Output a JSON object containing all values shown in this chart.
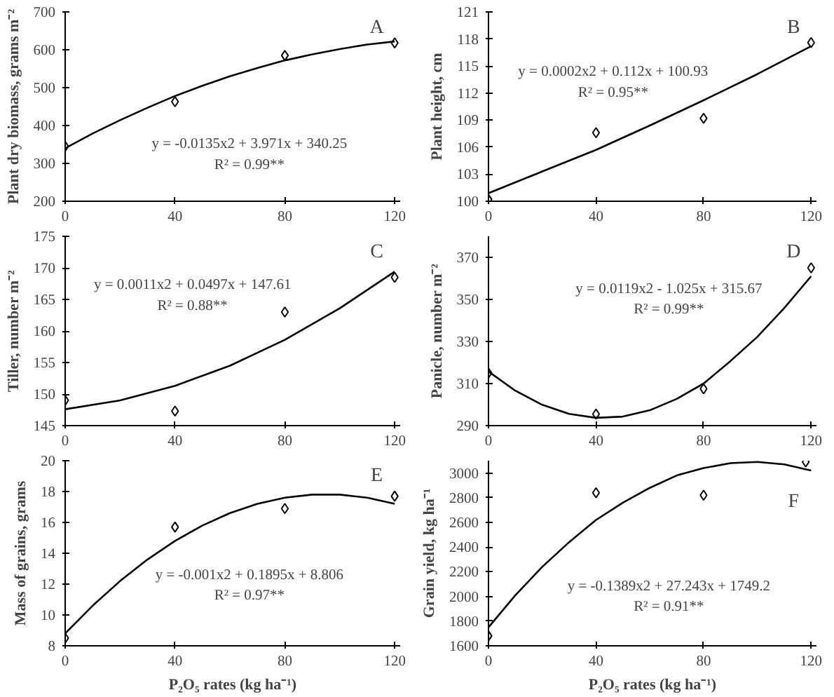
{
  "chart_data": [
    {
      "type": "scatter",
      "ylabel": "Plant dry biomass, grams m⁻²",
      "xlim": [
        0,
        122
      ],
      "xticks": [
        0,
        40,
        80,
        120
      ],
      "ylim": [
        200,
        700
      ],
      "yticks": [
        200,
        300,
        400,
        500,
        600,
        700
      ],
      "grid": false,
      "annotations": [
        "A",
        "y = -0.0135x2 + 3.971x + 340.25",
        "R² = 0.99**"
      ],
      "series": [
        {
          "marker": "diamond",
          "color": "#000000",
          "x": [
            0,
            40,
            80,
            120
          ],
          "values": [
            345,
            463,
            585,
            618
          ]
        },
        {
          "type": "line",
          "marker": "none",
          "line_style": "solid",
          "color": "#000000",
          "x": [
            0,
            10,
            20,
            30,
            40,
            50,
            60,
            70,
            80,
            90,
            100,
            110,
            120
          ],
          "values": [
            340,
            379,
            414,
            447,
            478,
            505,
            530,
            552,
            572,
            588,
            602,
            614,
            622
          ]
        }
      ]
    },
    {
      "type": "scatter",
      "ylabel": "Plant height, cm",
      "xlim": [
        0,
        122
      ],
      "xticks": [
        0,
        40,
        80,
        120
      ],
      "ylim": [
        100,
        121
      ],
      "yticks": [
        100,
        103,
        106,
        109,
        112,
        115,
        118,
        121
      ],
      "grid": false,
      "annotations": [
        "B",
        "y = 0.0002x2 + 0.112x + 100.93",
        "R² = 0.95**"
      ],
      "series": [
        {
          "marker": "diamond",
          "color": "#000000",
          "x": [
            0,
            40,
            80,
            120
          ],
          "values": [
            100.2,
            107.6,
            109.2,
            117.6
          ]
        },
        {
          "type": "line",
          "marker": "none",
          "line_style": "solid",
          "color": "#000000",
          "x": [
            0,
            20,
            40,
            60,
            80,
            100,
            120
          ],
          "values": [
            100.9,
            103.3,
            105.7,
            108.4,
            111.2,
            114.1,
            117.2
          ]
        }
      ]
    },
    {
      "type": "scatter",
      "ylabel": "Tiller, number m⁻²",
      "xlim": [
        0,
        122
      ],
      "xticks": [
        0,
        40,
        80,
        120
      ],
      "ylim": [
        145,
        175
      ],
      "yticks": [
        145,
        150,
        155,
        160,
        165,
        170,
        175
      ],
      "grid": false,
      "annotations": [
        "C",
        "y = 0.0011x2 + 0.0497x + 147.61",
        "R² = 0.88**"
      ],
      "series": [
        {
          "marker": "diamond",
          "color": "#000000",
          "x": [
            0,
            40,
            80,
            120
          ],
          "values": [
            149,
            147.3,
            163,
            168.5
          ]
        },
        {
          "type": "line",
          "marker": "none",
          "line_style": "solid",
          "color": "#000000",
          "x": [
            0,
            20,
            40,
            60,
            80,
            100,
            120
          ],
          "values": [
            147.6,
            149.0,
            151.3,
            154.5,
            158.6,
            163.6,
            169.4
          ]
        }
      ]
    },
    {
      "type": "scatter",
      "ylabel": "Panicle, number m⁻²",
      "xlim": [
        0,
        122
      ],
      "xticks": [
        0,
        40,
        80,
        120
      ],
      "ylim": [
        290,
        380
      ],
      "yticks": [
        290,
        310,
        330,
        350,
        370
      ],
      "grid": false,
      "annotations": [
        "D",
        "y = 0.0119x2 - 1.025x + 315.67",
        "R² = 0.99**"
      ],
      "series": [
        {
          "marker": "diamond",
          "color": "#000000",
          "x": [
            0,
            40,
            80,
            120
          ],
          "values": [
            315,
            295.5,
            307.5,
            365
          ]
        },
        {
          "type": "line",
          "marker": "none",
          "line_style": "solid",
          "color": "#000000",
          "x": [
            0,
            10,
            20,
            30,
            40,
            50,
            60,
            70,
            80,
            90,
            100,
            110,
            120
          ],
          "values": [
            315.7,
            306.6,
            299.9,
            295.6,
            293.7,
            294.3,
            297.3,
            302.7,
            310.0,
            320.7,
            332.2,
            345.9,
            361.0
          ]
        }
      ]
    },
    {
      "type": "scatter",
      "xlabel": "P₂O₅ rates (kg ha⁻¹)",
      "ylabel": "Mass of grains, grams",
      "xlim": [
        0,
        122
      ],
      "xticks": [
        0,
        40,
        80,
        120
      ],
      "ylim": [
        8,
        20
      ],
      "yticks": [
        8,
        10,
        12,
        14,
        16,
        18,
        20
      ],
      "grid": false,
      "annotations": [
        "E",
        "y = -0.001x2 + 0.1895x + 8.806",
        "R² = 0.97**"
      ],
      "series": [
        {
          "marker": "diamond",
          "color": "#000000",
          "x": [
            0,
            40,
            80,
            120
          ],
          "values": [
            8.5,
            15.7,
            16.9,
            17.7
          ]
        },
        {
          "type": "line",
          "marker": "none",
          "line_style": "solid",
          "color": "#000000",
          "x": [
            0,
            10,
            20,
            30,
            40,
            50,
            60,
            70,
            80,
            90,
            100,
            110,
            120
          ],
          "values": [
            8.8,
            10.6,
            12.2,
            13.6,
            14.8,
            15.8,
            16.6,
            17.2,
            17.6,
            17.8,
            17.8,
            17.6,
            17.2
          ]
        }
      ]
    },
    {
      "type": "scatter",
      "xlabel": "P₂O₅ rates (kg ha⁻¹)",
      "ylabel": "Grain yield, kg ha⁻¹",
      "xlim": [
        0,
        122
      ],
      "xticks": [
        0,
        40,
        80,
        120
      ],
      "ylim": [
        1600,
        3100
      ],
      "yticks": [
        1600,
        1800,
        2000,
        2200,
        2400,
        2600,
        2800,
        3000
      ],
      "grid": false,
      "annotations": [
        "F",
        "y = -0.1389x2 + 27.243x + 1749.2",
        "R² = 0.91**"
      ],
      "series": [
        {
          "marker": "diamond",
          "color": "#000000",
          "x": [
            0,
            40,
            80,
            118
          ],
          "values": [
            1680,
            2840,
            2820,
            3090
          ]
        },
        {
          "type": "line",
          "marker": "none",
          "line_style": "solid",
          "color": "#000000",
          "x": [
            0,
            10,
            20,
            30,
            40,
            50,
            60,
            70,
            80,
            90,
            100,
            110,
            120
          ],
          "values": [
            1750,
            2010,
            2240,
            2440,
            2620,
            2760,
            2880,
            2980,
            3040,
            3080,
            3090,
            3070,
            3020
          ]
        }
      ]
    }
  ]
}
